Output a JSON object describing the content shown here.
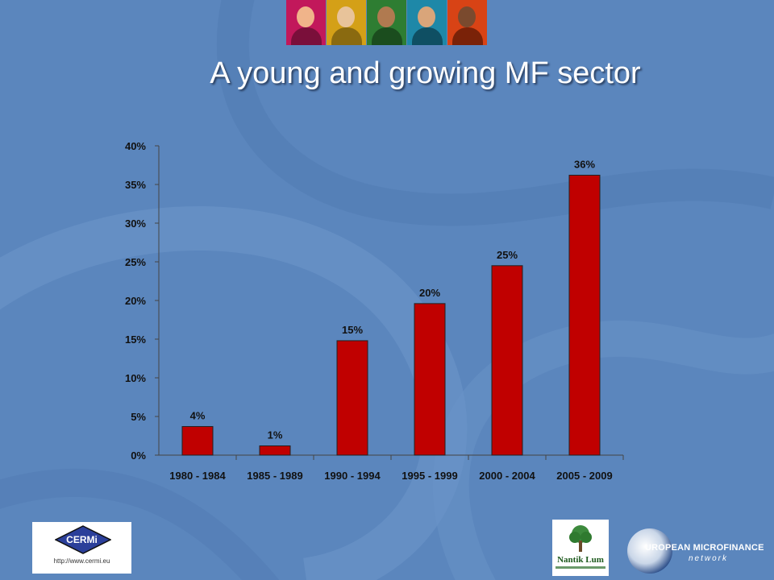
{
  "slide": {
    "title": "A young and growing MF sector",
    "logos": {
      "cermi_name": "CERMi",
      "cermi_url": "http://www.cermi.eu",
      "nantik_name": "Nantik Lum",
      "emn_line1": "UROPEAN MICROFINANCE",
      "emn_line2": "network"
    },
    "colors": {
      "background": "#5b86bd",
      "bar_fill": "#c00000",
      "photo_tints": [
        "#c2185b",
        "#d4a017",
        "#2e7d32",
        "#1e88a8",
        "#d84315"
      ]
    }
  },
  "chart_data": {
    "type": "bar",
    "categories": [
      "1980 - 1984",
      "1985 - 1989",
      "1990 - 1994",
      "1995 - 1999",
      "2000 - 2004",
      "2005 - 2009"
    ],
    "values": [
      3.7,
      1.2,
      14.8,
      19.6,
      24.5,
      36.2
    ],
    "data_labels": [
      "4%",
      "1%",
      "15%",
      "20%",
      "25%",
      "36%"
    ],
    "y_ticks": [
      "0%",
      "5%",
      "10%",
      "15%",
      "20%",
      "25%",
      "30%",
      "35%",
      "40%"
    ],
    "ylim": [
      0,
      40
    ],
    "grid": false,
    "legend": false
  }
}
